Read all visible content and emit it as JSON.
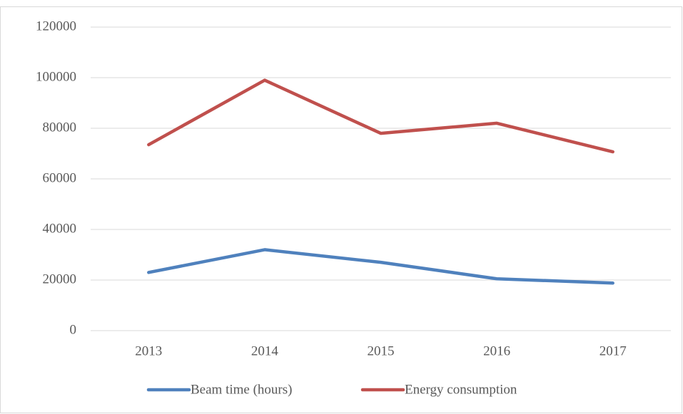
{
  "chart_data": {
    "type": "line",
    "categories": [
      "2013",
      "2014",
      "2015",
      "2016",
      "2017"
    ],
    "series": [
      {
        "name": "Beam time (hours)",
        "color": "#4f81bd",
        "values": [
          23000,
          32000,
          27000,
          20500,
          18800
        ]
      },
      {
        "name": "Energy consumption",
        "color": "#c0504d",
        "values": [
          73500,
          99000,
          78000,
          82000,
          70700
        ]
      }
    ],
    "ylim": [
      0,
      120000
    ],
    "yticks": [
      0,
      20000,
      40000,
      60000,
      80000,
      100000,
      120000
    ],
    "grid": true,
    "legend": "bottom"
  }
}
